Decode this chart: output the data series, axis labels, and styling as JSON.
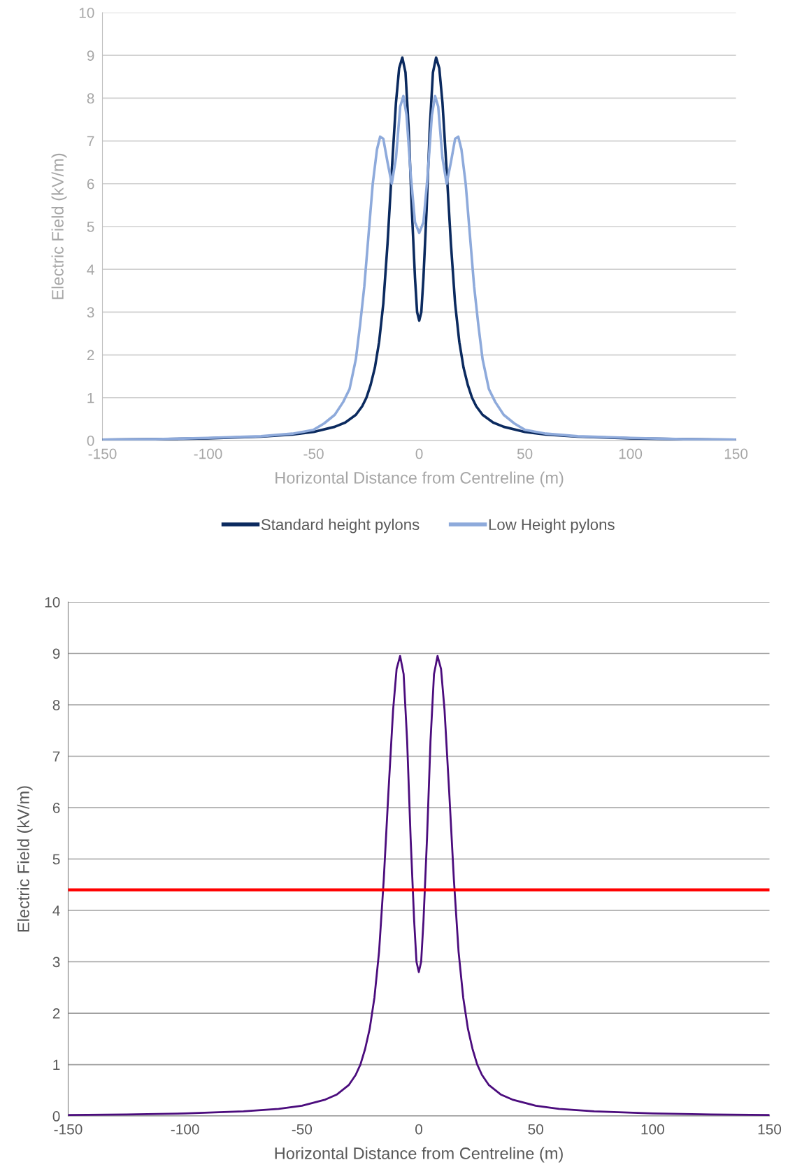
{
  "chart_data": [
    {
      "type": "line",
      "xlabel": "Horizontal Distance from Centreline (m)",
      "ylabel": "Electric Field (kV/m)",
      "xlim": [
        -150,
        150
      ],
      "xticks": [
        -150,
        -100,
        -50,
        0,
        50,
        100,
        150
      ],
      "ylim": [
        0,
        10
      ],
      "yticks": [
        0,
        1,
        2,
        3,
        4,
        5,
        6,
        7,
        8,
        9,
        10
      ],
      "grid": "y",
      "legend": "bottom",
      "marker": "none",
      "line_style": "solid",
      "series": [
        {
          "name": "Standard height pylons",
          "color": "#0b2a5f",
          "x": [
            -150,
            -125,
            -100,
            -75,
            -60,
            -50,
            -40,
            -35,
            -30,
            -27,
            -25,
            -23,
            -21,
            -19,
            -17,
            -15,
            -13,
            -11,
            -9.5,
            -8,
            -6.5,
            -5,
            -3.5,
            -2,
            -1,
            0,
            1,
            2,
            3.5,
            5,
            6.5,
            8,
            9.5,
            11,
            13,
            15,
            17,
            19,
            21,
            23,
            25,
            27,
            30,
            35,
            40,
            50,
            60,
            75,
            100,
            125,
            150
          ],
          "values": [
            0.02,
            0.03,
            0.05,
            0.09,
            0.14,
            0.2,
            0.32,
            0.42,
            0.6,
            0.8,
            1.0,
            1.3,
            1.7,
            2.3,
            3.2,
            4.6,
            6.3,
            7.9,
            8.7,
            8.95,
            8.6,
            7.3,
            5.4,
            3.8,
            3.0,
            2.8,
            3.0,
            3.8,
            5.4,
            7.3,
            8.6,
            8.95,
            8.7,
            7.9,
            6.3,
            4.6,
            3.2,
            2.3,
            1.7,
            1.3,
            1.0,
            0.8,
            0.6,
            0.42,
            0.32,
            0.2,
            0.14,
            0.09,
            0.05,
            0.03,
            0.02
          ]
        },
        {
          "name": "Low Height pylons",
          "color": "#8eaadb",
          "x": [
            -150,
            -125,
            -100,
            -75,
            -60,
            -50,
            -45,
            -40,
            -36,
            -33,
            -30,
            -28,
            -26,
            -24,
            -22,
            -20,
            -18.5,
            -17,
            -15,
            -13,
            -11,
            -9,
            -7.5,
            -6,
            -4,
            -2,
            0,
            2,
            4,
            6,
            7.5,
            9,
            11,
            13,
            15,
            17,
            18.5,
            20,
            22,
            24,
            26,
            28,
            30,
            33,
            36,
            40,
            45,
            50,
            60,
            75,
            100,
            125,
            150
          ],
          "values": [
            0.02,
            0.03,
            0.06,
            0.1,
            0.16,
            0.25,
            0.4,
            0.6,
            0.9,
            1.2,
            1.9,
            2.7,
            3.6,
            4.8,
            6.0,
            6.8,
            7.1,
            7.05,
            6.5,
            6.0,
            6.6,
            7.8,
            8.05,
            7.6,
            6.2,
            5.1,
            4.85,
            5.1,
            6.2,
            7.6,
            8.05,
            7.8,
            6.6,
            6.0,
            6.5,
            7.05,
            7.1,
            6.8,
            6.0,
            4.8,
            3.6,
            2.7,
            1.9,
            1.2,
            0.9,
            0.6,
            0.4,
            0.25,
            0.16,
            0.1,
            0.06,
            0.03,
            0.02
          ]
        }
      ]
    },
    {
      "type": "line",
      "xlabel": "Horizontal Distance from Centreline (m)",
      "ylabel": "Electric Field (kV/m)",
      "xlim": [
        -150,
        150
      ],
      "xticks": [
        -150,
        -100,
        -50,
        0,
        50,
        100,
        150
      ],
      "ylim": [
        0,
        10
      ],
      "yticks": [
        0,
        1,
        2,
        3,
        4,
        5,
        6,
        7,
        8,
        9,
        10
      ],
      "grid": "y",
      "marker": "none",
      "line_style": "solid",
      "ref_lines": [
        {
          "axis": "y",
          "value": 4.4,
          "color": "#ff0000",
          "line_style": "solid"
        }
      ],
      "series": [
        {
          "color": "#4b0c7d",
          "x": [
            -150,
            -125,
            -100,
            -75,
            -60,
            -50,
            -40,
            -35,
            -30,
            -27,
            -25,
            -23,
            -21,
            -19,
            -17,
            -15,
            -13,
            -11,
            -9.5,
            -8,
            -6.5,
            -5,
            -3.5,
            -2,
            -1,
            0,
            1,
            2,
            3.5,
            5,
            6.5,
            8,
            9.5,
            11,
            13,
            15,
            17,
            19,
            21,
            23,
            25,
            27,
            30,
            35,
            40,
            50,
            60,
            75,
            100,
            125,
            150
          ],
          "values": [
            0.02,
            0.03,
            0.05,
            0.09,
            0.14,
            0.2,
            0.32,
            0.42,
            0.6,
            0.8,
            1.0,
            1.3,
            1.7,
            2.3,
            3.2,
            4.6,
            6.3,
            7.9,
            8.7,
            8.95,
            8.6,
            7.3,
            5.4,
            3.8,
            3.0,
            2.8,
            3.0,
            3.8,
            5.4,
            7.3,
            8.6,
            8.95,
            8.7,
            7.9,
            6.3,
            4.6,
            3.2,
            2.3,
            1.7,
            1.3,
            1.0,
            0.8,
            0.6,
            0.42,
            0.32,
            0.2,
            0.14,
            0.09,
            0.05,
            0.03,
            0.02
          ]
        }
      ]
    }
  ]
}
